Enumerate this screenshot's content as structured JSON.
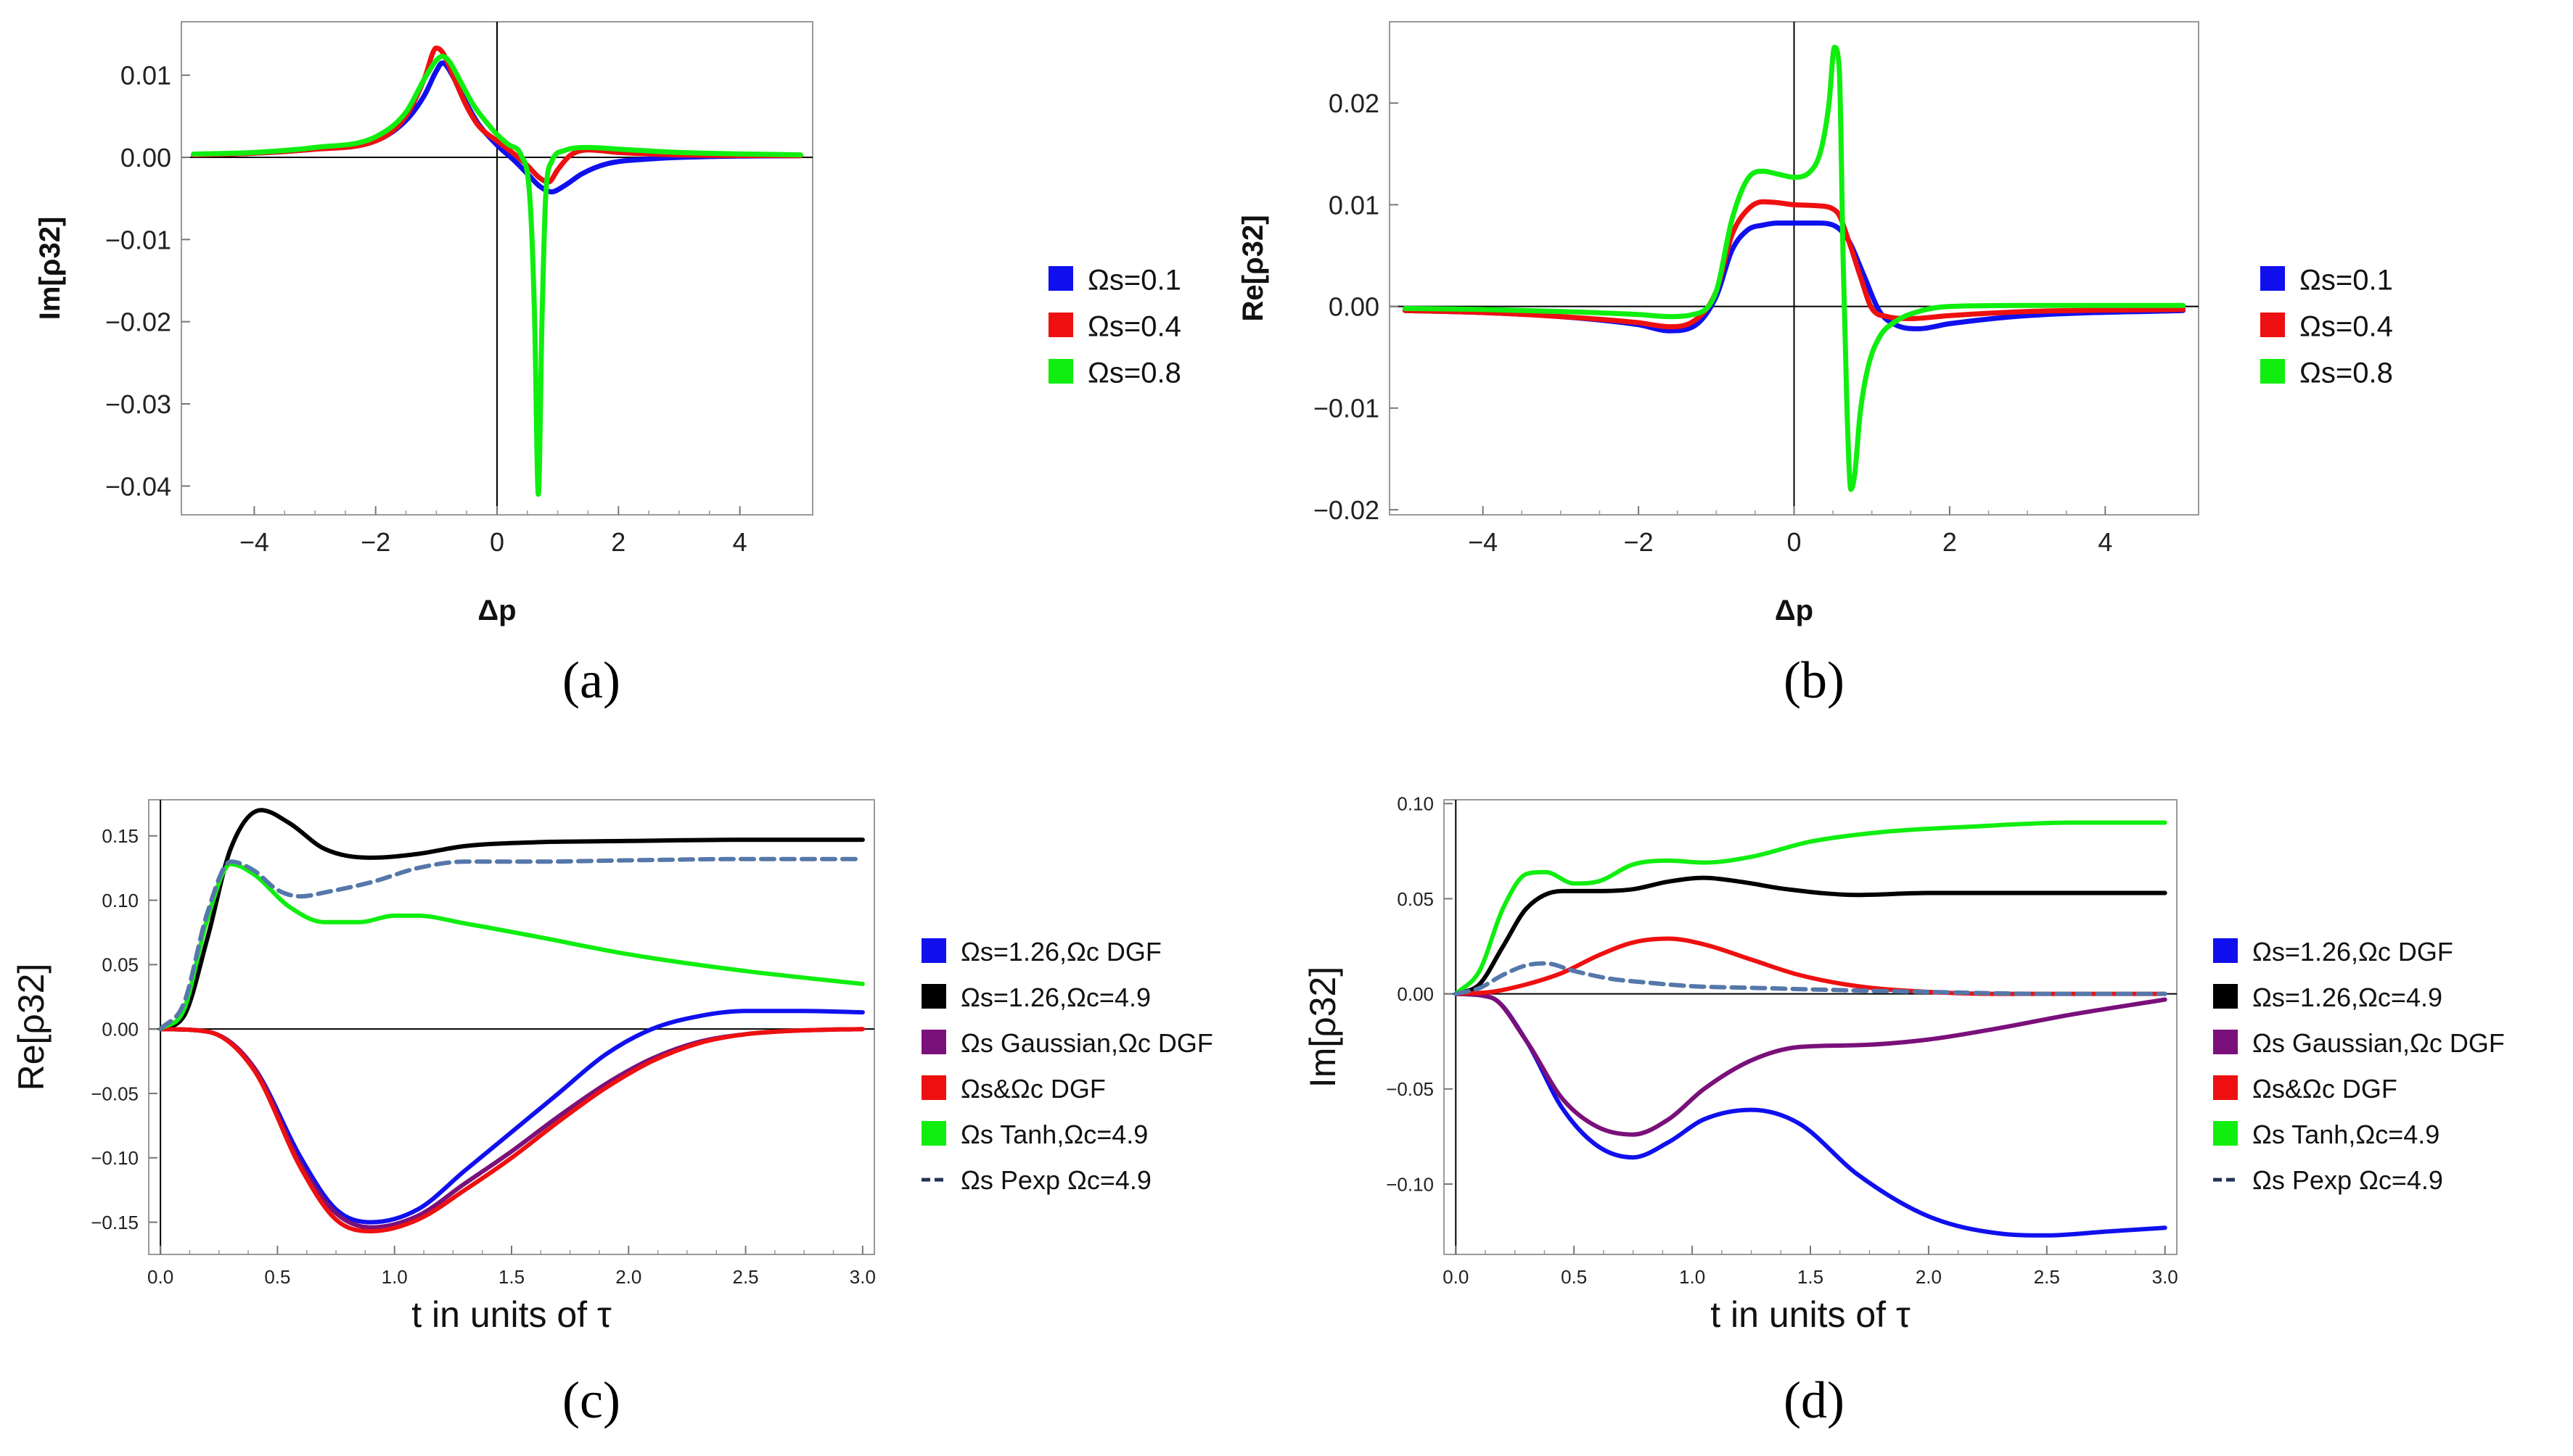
{
  "chart_data": [
    {
      "id": "a",
      "type": "line",
      "caption": "(a)",
      "xlabel": "Δp",
      "ylabel": "Im[ρ32]",
      "xlim": [
        -5.2,
        5.2
      ],
      "ylim": [
        -0.0435,
        0.0165
      ],
      "xticks": [
        -4,
        -2,
        0,
        2,
        4
      ],
      "xtick_labels": [
        "−4",
        "−2",
        "0",
        "2",
        "4"
      ],
      "yticks": [
        0.01,
        0.0,
        -0.01,
        -0.02,
        -0.03,
        -0.04
      ],
      "ytick_labels": [
        "0.01",
        "0.00",
        "−0.01",
        "−0.02",
        "−0.03",
        "−0.04"
      ],
      "legend": [
        "Ωs=0.1",
        "Ωs=0.4",
        "Ωs=0.8"
      ],
      "series": [
        {
          "name": "Ωs=0.1",
          "color": "#1010ee",
          "x": [
            -5,
            -4,
            -3,
            -2,
            -1.5,
            -1.2,
            -1.0,
            -0.9,
            -0.7,
            -0.5,
            -0.3,
            0,
            0.3,
            0.5,
            0.7,
            0.9,
            1.1,
            1.4,
            1.8,
            2.5,
            3.5,
            5
          ],
          "y": [
            0.0003,
            0.0005,
            0.001,
            0.002,
            0.0045,
            0.0075,
            0.0105,
            0.0115,
            0.0095,
            0.0065,
            0.004,
            0.0015,
            -0.0005,
            -0.002,
            -0.0035,
            -0.0042,
            -0.0035,
            -0.002,
            -0.0008,
            -0.0002,
            0.0001,
            0.0002
          ]
        },
        {
          "name": "Ωs=0.4",
          "color": "#ee1010",
          "x": [
            -5,
            -4,
            -3,
            -2,
            -1.5,
            -1.2,
            -1.0,
            -0.9,
            -0.7,
            -0.5,
            -0.3,
            0,
            0.3,
            0.5,
            0.7,
            0.85,
            1.0,
            1.2,
            1.5,
            2.0,
            3.0,
            5
          ],
          "y": [
            0.0003,
            0.0005,
            0.001,
            0.002,
            0.005,
            0.0095,
            0.0133,
            0.0128,
            0.0095,
            0.0062,
            0.0038,
            0.002,
            0.0003,
            -0.001,
            -0.0025,
            -0.003,
            -0.0015,
            0.0002,
            0.0009,
            0.0006,
            0.0003,
            0.0002
          ]
        },
        {
          "name": "Ωs=0.8",
          "color": "#10ee10",
          "x": [
            -5,
            -4,
            -3,
            -2,
            -1.5,
            -1.2,
            -1.0,
            -0.9,
            -0.8,
            -0.6,
            -0.4,
            -0.2,
            0,
            0.2,
            0.4,
            0.55,
            0.62,
            0.68,
            0.74,
            0.8,
            0.9,
            1.1,
            1.5,
            2,
            3,
            5
          ],
          "y": [
            0.0004,
            0.0006,
            0.0012,
            0.0025,
            0.0055,
            0.0095,
            0.0118,
            0.0123,
            0.0118,
            0.0092,
            0.0065,
            0.0045,
            0.0028,
            0.0015,
            0.0002,
            -0.006,
            -0.02,
            -0.041,
            -0.02,
            -0.005,
            -0.0005,
            0.0008,
            0.0012,
            0.001,
            0.0006,
            0.0003
          ]
        }
      ]
    },
    {
      "id": "b",
      "type": "line",
      "caption": "(b)",
      "xlabel": "Δp",
      "ylabel": "Re[ρ32]",
      "xlim": [
        -5.2,
        5.2
      ],
      "ylim": [
        -0.0205,
        0.028
      ],
      "xticks": [
        -4,
        -2,
        0,
        2,
        4
      ],
      "xtick_labels": [
        "−4",
        "−2",
        "0",
        "2",
        "4"
      ],
      "yticks": [
        0.02,
        0.01,
        0.0,
        -0.01,
        -0.02
      ],
      "ytick_labels": [
        "0.02",
        "0.01",
        "0.00",
        "−0.01",
        "−0.02"
      ],
      "legend": [
        "Ωs=0.1",
        "Ωs=0.4",
        "Ωs=0.8"
      ],
      "series": [
        {
          "name": "Ωs=0.1",
          "color": "#1010ee",
          "x": [
            -5,
            -4,
            -3,
            -2,
            -1.6,
            -1.3,
            -1.0,
            -0.8,
            -0.6,
            -0.4,
            -0.2,
            0,
            0.3,
            0.5,
            0.7,
            0.9,
            1.1,
            1.3,
            1.6,
            2,
            3,
            5
          ],
          "y": [
            -0.0004,
            -0.0006,
            -0.001,
            -0.0018,
            -0.0024,
            -0.002,
            0.001,
            0.0055,
            0.0075,
            0.008,
            0.0082,
            0.0082,
            0.0082,
            0.008,
            0.0065,
            0.003,
            -0.0005,
            -0.0018,
            -0.0022,
            -0.0017,
            -0.0009,
            -0.0004
          ]
        },
        {
          "name": "Ωs=0.4",
          "color": "#ee1010",
          "x": [
            -5,
            -4,
            -3,
            -2,
            -1.6,
            -1.3,
            -1.0,
            -0.8,
            -0.6,
            -0.4,
            -0.2,
            0,
            0.3,
            0.55,
            0.7,
            0.85,
            1.0,
            1.2,
            1.5,
            2,
            3,
            5
          ],
          "y": [
            -0.0004,
            -0.0006,
            -0.001,
            -0.0016,
            -0.002,
            -0.0015,
            0.0015,
            0.007,
            0.0095,
            0.0103,
            0.0102,
            0.01,
            0.0099,
            0.0093,
            0.0065,
            0.003,
            -0.0002,
            -0.001,
            -0.0012,
            -0.0009,
            -0.0005,
            -0.0003
          ]
        },
        {
          "name": "Ωs=0.8",
          "color": "#10ee10",
          "x": [
            -5,
            -4,
            -3,
            -2,
            -1.6,
            -1.3,
            -1.0,
            -0.8,
            -0.6,
            -0.4,
            -0.2,
            0,
            0.2,
            0.35,
            0.45,
            0.52,
            0.58,
            0.63,
            0.68,
            0.73,
            0.78,
            0.85,
            0.95,
            1.1,
            1.3,
            1.6,
            2,
            3,
            5
          ],
          "y": [
            -0.0002,
            -0.0003,
            -0.0005,
            -0.0008,
            -0.001,
            -0.0008,
            0.0015,
            0.0085,
            0.0125,
            0.0133,
            0.013,
            0.0127,
            0.0132,
            0.0155,
            0.02,
            0.0255,
            0.0235,
            0.005,
            -0.01,
            -0.018,
            -0.0165,
            -0.0105,
            -0.006,
            -0.003,
            -0.0015,
            -0.0005,
            0.0,
            0.0001,
            0.0001
          ]
        }
      ]
    },
    {
      "id": "c",
      "type": "line",
      "caption": "(c)",
      "xlabel": "t in units of τ",
      "ylabel": "Re[ρ32]",
      "xlim": [
        -0.05,
        3.05
      ],
      "ylim": [
        -0.175,
        0.178
      ],
      "xticks": [
        0,
        0.5,
        1,
        1.5,
        2,
        2.5,
        3
      ],
      "xtick_labels": [
        "0.0",
        "0.5",
        "1.0",
        "1.5",
        "2.0",
        "2.5",
        "3.0"
      ],
      "yticks": [
        0.15,
        0.1,
        0.05,
        0,
        -0.05,
        -0.1,
        -0.15
      ],
      "ytick_labels": [
        "0.15",
        "0.10",
        "0.05",
        "0.00",
        "−0.05",
        "−0.10",
        "−0.15"
      ],
      "legend": [
        "Ωs=1.26,Ωc DGF",
        "Ωs=1.26,Ωc=4.9",
        "Ωs Gaussian,Ωc DGF",
        "Ωs&Ωc DGF",
        "Ωs Tanh,Ωc=4.9",
        "Ωs Pexp Ωc=4.9"
      ],
      "series": [
        {
          "name": "Ωs=1.26,Ωc DGF",
          "color": "#1010ee",
          "x": [
            0,
            0.2,
            0.4,
            0.6,
            0.75,
            0.9,
            1.1,
            1.3,
            1.5,
            1.7,
            1.9,
            2.1,
            2.3,
            2.5,
            2.75,
            3.0
          ],
          "y": [
            0,
            -0.002,
            -0.03,
            -0.1,
            -0.14,
            -0.15,
            -0.14,
            -0.11,
            -0.08,
            -0.05,
            -0.02,
            0.0,
            0.01,
            0.014,
            0.014,
            0.013
          ]
        },
        {
          "name": "Ωs=1.26,Ωc=4.9",
          "color": "#000000",
          "x": [
            0,
            0.1,
            0.2,
            0.3,
            0.43,
            0.55,
            0.7,
            0.9,
            1.1,
            1.3,
            1.6,
            2.0,
            2.5,
            3.0
          ],
          "y": [
            0,
            0.01,
            0.07,
            0.14,
            0.17,
            0.16,
            0.14,
            0.133,
            0.136,
            0.142,
            0.145,
            0.146,
            0.147,
            0.147
          ]
        },
        {
          "name": "Ωs Gaussian,Ωc DGF",
          "color": "#7a107a",
          "x": [
            0,
            0.2,
            0.4,
            0.6,
            0.75,
            0.9,
            1.1,
            1.3,
            1.5,
            1.7,
            1.9,
            2.1,
            2.3,
            2.5,
            2.75,
            3.0
          ],
          "y": [
            0,
            -0.002,
            -0.03,
            -0.105,
            -0.143,
            -0.154,
            -0.145,
            -0.12,
            -0.095,
            -0.068,
            -0.043,
            -0.023,
            -0.01,
            -0.004,
            -0.001,
            0.0
          ]
        },
        {
          "name": "Ωs&Ωc DGF",
          "color": "#ee1010",
          "x": [
            0,
            0.2,
            0.4,
            0.6,
            0.75,
            0.9,
            1.1,
            1.3,
            1.5,
            1.7,
            1.9,
            2.1,
            2.3,
            2.5,
            2.75,
            3.0
          ],
          "y": [
            0,
            -0.002,
            -0.032,
            -0.108,
            -0.148,
            -0.157,
            -0.148,
            -0.125,
            -0.1,
            -0.072,
            -0.046,
            -0.025,
            -0.011,
            -0.004,
            -0.001,
            0.0
          ]
        },
        {
          "name": "Ωs Tanh,Ωc=4.9",
          "color": "#10ee10",
          "x": [
            0,
            0.1,
            0.2,
            0.3,
            0.4,
            0.55,
            0.7,
            0.85,
            1.0,
            1.1,
            1.3,
            1.6,
            2.0,
            2.5,
            3.0
          ],
          "y": [
            0,
            0.015,
            0.085,
            0.128,
            0.12,
            0.095,
            0.083,
            0.083,
            0.088,
            0.088,
            0.082,
            0.072,
            0.058,
            0.045,
            0.035
          ]
        },
        {
          "name": "Ωs Pexp Ωc=4.9",
          "color": "#5577aa",
          "dashed": true,
          "x": [
            0,
            0.1,
            0.2,
            0.3,
            0.4,
            0.5,
            0.6,
            0.7,
            0.9,
            1.1,
            1.3,
            1.6,
            2.0,
            2.5,
            3.0
          ],
          "y": [
            0,
            0.02,
            0.09,
            0.13,
            0.123,
            0.108,
            0.103,
            0.106,
            0.114,
            0.125,
            0.13,
            0.13,
            0.131,
            0.132,
            0.132
          ]
        }
      ]
    },
    {
      "id": "d",
      "type": "line",
      "caption": "(d)",
      "xlabel": "t in units of τ",
      "ylabel": "Im[ρ32]",
      "xlim": [
        -0.05,
        3.05
      ],
      "ylim": [
        -0.137,
        0.102
      ],
      "xticks": [
        0,
        0.5,
        1,
        1.5,
        2,
        2.5,
        3
      ],
      "xtick_labels": [
        "0.0",
        "0.5",
        "1.0",
        "1.5",
        "2.0",
        "2.5",
        "3.0"
      ],
      "yticks": [
        0.1,
        0.05,
        0,
        -0.05,
        -0.1
      ],
      "ytick_labels": [
        "0.10",
        "0.05",
        "0.00",
        "−0.05",
        "−0.10"
      ],
      "legend": [
        "Ωs=1.26,Ωc DGF",
        "Ωs=1.26,Ωc=4.9",
        "Ωs Gaussian,Ωc DGF",
        "Ωs&Ωc DGF",
        "Ωs Tanh,Ωc=4.9",
        "Ωs Pexp Ωc=4.9"
      ],
      "series": [
        {
          "name": "Ωs=1.26,Ωc DGF",
          "color": "#1010ee",
          "x": [
            0,
            0.15,
            0.3,
            0.45,
            0.6,
            0.75,
            0.9,
            1.05,
            1.25,
            1.45,
            1.7,
            2.0,
            2.3,
            2.5,
            2.75,
            3.0
          ],
          "y": [
            0,
            -0.002,
            -0.025,
            -0.06,
            -0.08,
            -0.086,
            -0.078,
            -0.066,
            -0.061,
            -0.068,
            -0.095,
            -0.117,
            -0.126,
            -0.127,
            -0.125,
            -0.123
          ]
        },
        {
          "name": "Ωs=1.26,Ωc=4.9",
          "color": "#000000",
          "x": [
            0,
            0.1,
            0.2,
            0.3,
            0.45,
            0.6,
            0.75,
            0.9,
            1.05,
            1.2,
            1.4,
            1.7,
            2.0,
            2.5,
            3.0
          ],
          "y": [
            0,
            0.005,
            0.025,
            0.045,
            0.054,
            0.054,
            0.055,
            0.059,
            0.061,
            0.059,
            0.055,
            0.052,
            0.053,
            0.053,
            0.053
          ]
        },
        {
          "name": "Ωs Gaussian,Ωc DGF",
          "color": "#7a107a",
          "x": [
            0,
            0.15,
            0.3,
            0.45,
            0.6,
            0.75,
            0.9,
            1.05,
            1.25,
            1.45,
            1.7,
            2.0,
            2.3,
            2.6,
            3.0
          ],
          "y": [
            0,
            -0.002,
            -0.025,
            -0.055,
            -0.07,
            -0.074,
            -0.066,
            -0.05,
            -0.035,
            -0.028,
            -0.027,
            -0.024,
            -0.018,
            -0.011,
            -0.003
          ]
        },
        {
          "name": "Ωs&Ωc DGF",
          "color": "#ee1010",
          "x": [
            0,
            0.15,
            0.3,
            0.45,
            0.6,
            0.75,
            0.9,
            1.05,
            1.25,
            1.45,
            1.7,
            2.0,
            2.3,
            2.6,
            3.0
          ],
          "y": [
            0,
            0.001,
            0.005,
            0.011,
            0.02,
            0.027,
            0.029,
            0.026,
            0.018,
            0.01,
            0.004,
            0.001,
            0.0,
            0.0,
            0.0
          ]
        },
        {
          "name": "Ωs Tanh,Ωc=4.9",
          "color": "#10ee10",
          "x": [
            0,
            0.1,
            0.2,
            0.3,
            0.38,
            0.5,
            0.6,
            0.75,
            0.9,
            1.05,
            1.25,
            1.5,
            1.8,
            2.2,
            2.6,
            3.0
          ],
          "y": [
            0,
            0.012,
            0.045,
            0.063,
            0.064,
            0.058,
            0.059,
            0.068,
            0.07,
            0.069,
            0.072,
            0.08,
            0.085,
            0.088,
            0.09,
            0.09
          ]
        },
        {
          "name": "Ωs Pexp Ωc=4.9",
          "color": "#5577aa",
          "dashed": true,
          "x": [
            0,
            0.1,
            0.2,
            0.3,
            0.38,
            0.5,
            0.65,
            0.8,
            1.0,
            1.3,
            1.6,
            2.0,
            2.5,
            3.0
          ],
          "y": [
            0,
            0.003,
            0.01,
            0.015,
            0.016,
            0.012,
            0.008,
            0.006,
            0.004,
            0.003,
            0.002,
            0.001,
            0.0,
            0.0
          ]
        }
      ]
    }
  ]
}
